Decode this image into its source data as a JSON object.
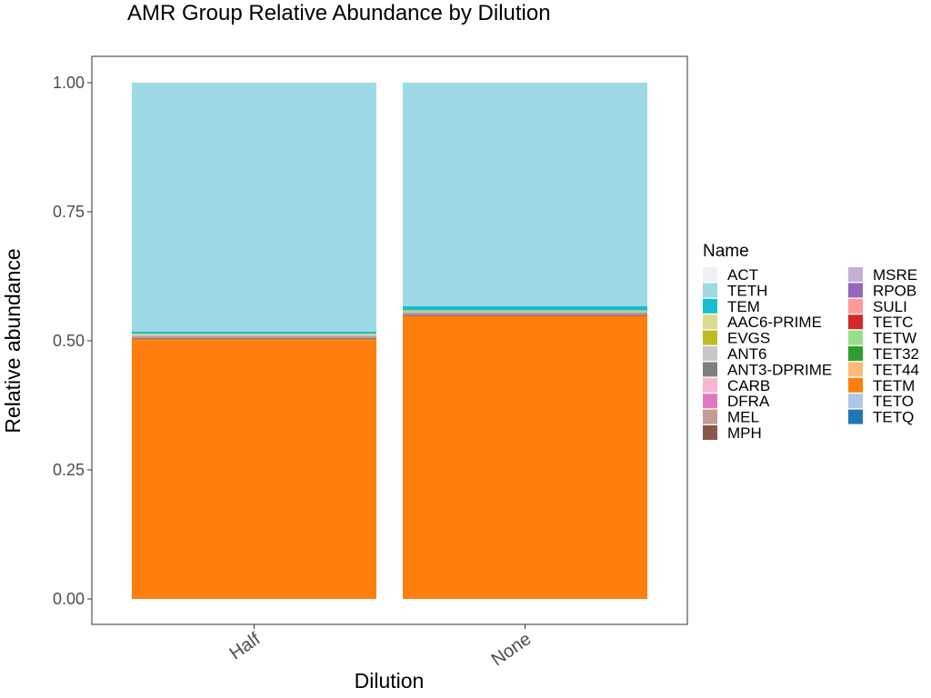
{
  "chart_data": {
    "type": "bar",
    "stacked": true,
    "title": "AMR Group Relative Abundance by Dilution",
    "xlabel": "Dilution",
    "ylabel": "Relative abundance",
    "ylim": [
      0,
      1.05
    ],
    "yticks": [
      "0.00",
      "0.25",
      "0.50",
      "0.75",
      "1.00"
    ],
    "categories": [
      "Half",
      "None"
    ],
    "grid": false,
    "legend": {
      "title": "Name",
      "position": "right",
      "columns": 2
    },
    "series": [
      {
        "name": "TETM",
        "color": "#ff7f0e",
        "values": [
          0.503,
          0.548
        ]
      },
      {
        "name": "MPH",
        "color": "#8c564b",
        "values": [
          0.002,
          0.002
        ]
      },
      {
        "name": "MEL",
        "color": "#c49c94",
        "values": [
          0.002,
          0.002
        ]
      },
      {
        "name": "ANT3-DPRIME",
        "color": "#7f7f7f",
        "values": [
          0.001,
          0.002
        ]
      },
      {
        "name": "ANT6",
        "color": "#c7c7c7",
        "values": [
          0.004,
          0.003
        ]
      },
      {
        "name": "EVGS",
        "color": "#bcbd22",
        "values": [
          0.001,
          0.001
        ]
      },
      {
        "name": "AAC6-PRIME",
        "color": "#dbdb8d",
        "values": [
          0.001,
          0.001
        ]
      },
      {
        "name": "TEM",
        "color": "#17becf",
        "values": [
          0.004,
          0.008
        ]
      },
      {
        "name": "TETH",
        "color": "#9edae5",
        "values": [
          0.482,
          0.433
        ]
      }
    ],
    "legend_entries": [
      {
        "name": "ACT",
        "color": "#f0f0f0"
      },
      {
        "name": "TETH",
        "color": "#9edae5"
      },
      {
        "name": "TEM",
        "color": "#17becf"
      },
      {
        "name": "AAC6-PRIME",
        "color": "#dbdb8d"
      },
      {
        "name": "EVGS",
        "color": "#bcbd22"
      },
      {
        "name": "ANT6",
        "color": "#c7c7c7"
      },
      {
        "name": "ANT3-DPRIME",
        "color": "#7f7f7f"
      },
      {
        "name": "CARB",
        "color": "#f7b6d2"
      },
      {
        "name": "DFRA",
        "color": "#e377c2"
      },
      {
        "name": "MEL",
        "color": "#c49c94"
      },
      {
        "name": "MPH",
        "color": "#8c564b"
      },
      {
        "name": "MSRE",
        "color": "#c5b0d5"
      },
      {
        "name": "RPOB",
        "color": "#9467bd"
      },
      {
        "name": "SULI",
        "color": "#ff9896"
      },
      {
        "name": "TETC",
        "color": "#d62728"
      },
      {
        "name": "TETW",
        "color": "#98df8a"
      },
      {
        "name": "TET32",
        "color": "#2ca02c"
      },
      {
        "name": "TET44",
        "color": "#ffbb78"
      },
      {
        "name": "TETM",
        "color": "#ff7f0e"
      },
      {
        "name": "TETO",
        "color": "#aec7e8"
      },
      {
        "name": "TETQ",
        "color": "#1f77b4"
      }
    ]
  }
}
